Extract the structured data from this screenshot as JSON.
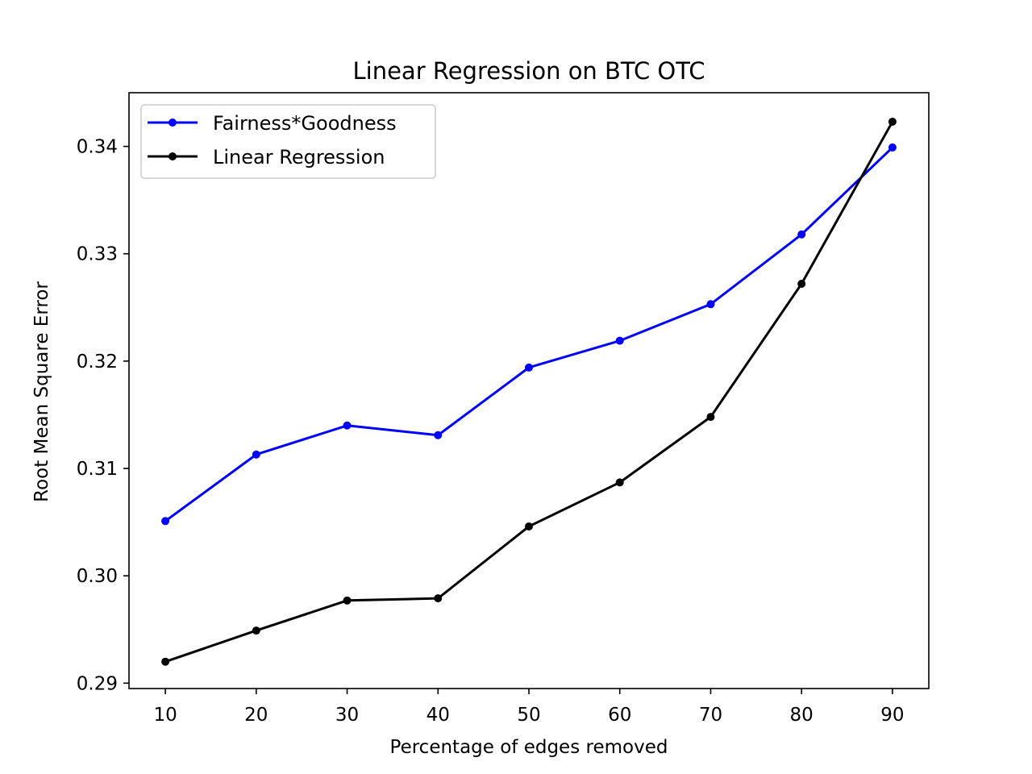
{
  "chart_data": {
    "type": "line",
    "title": "Linear Regression on BTC OTC",
    "xlabel": "Percentage of edges removed",
    "ylabel": "Root Mean Square Error",
    "x": [
      10,
      20,
      30,
      40,
      50,
      60,
      70,
      80,
      90
    ],
    "xlim": [
      6,
      94
    ],
    "ylim": [
      0.2895,
      0.345
    ],
    "xticks": [
      10,
      20,
      30,
      40,
      50,
      60,
      70,
      80,
      90
    ],
    "xtick_labels": [
      "10",
      "20",
      "30",
      "40",
      "50",
      "60",
      "70",
      "80",
      "90"
    ],
    "yticks": [
      0.29,
      0.3,
      0.31,
      0.32,
      0.33,
      0.34
    ],
    "ytick_labels": [
      "0.29",
      "0.30",
      "0.31",
      "0.32",
      "0.33",
      "0.34"
    ],
    "grid": false,
    "legend_position": "top-left",
    "series": [
      {
        "name": "Fairness*Goodness",
        "color": "#0000ff",
        "marker": "circle",
        "values": [
          0.3051,
          0.3113,
          0.314,
          0.3131,
          0.3194,
          0.3219,
          0.3253,
          0.3318,
          0.3399
        ]
      },
      {
        "name": "Linear Regression",
        "color": "#000000",
        "marker": "circle",
        "values": [
          0.292,
          0.2949,
          0.2977,
          0.2979,
          0.3046,
          0.3087,
          0.3148,
          0.3272,
          0.3423
        ]
      }
    ]
  }
}
